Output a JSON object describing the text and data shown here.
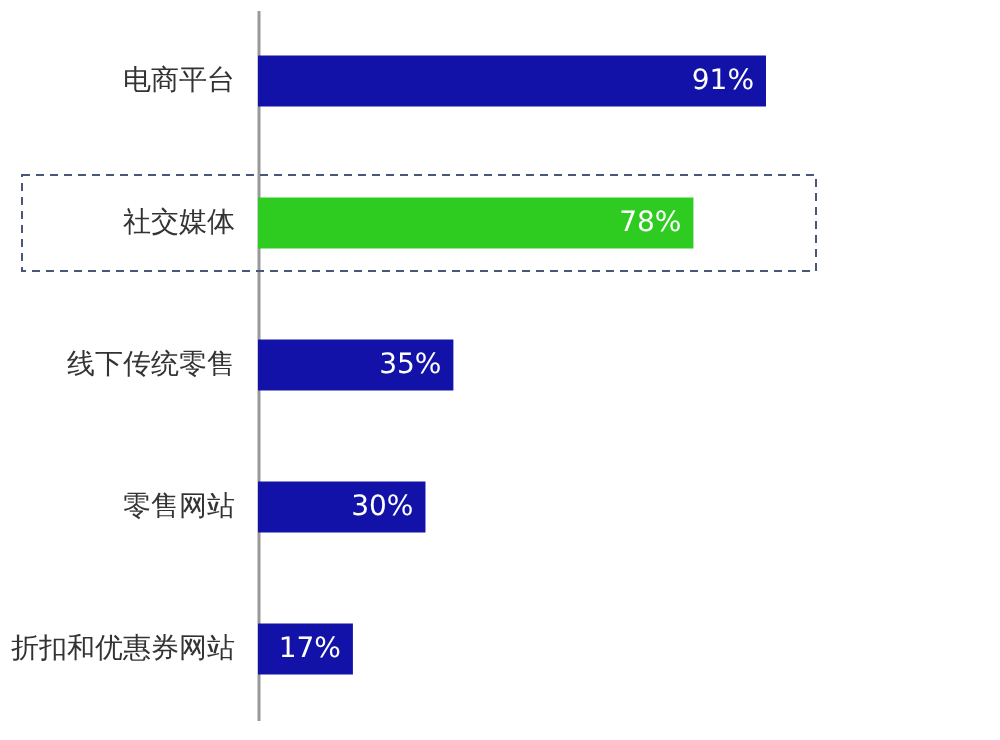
{
  "chart_data": {
    "type": "bar",
    "orientation": "horizontal",
    "categories": [
      "电商平台",
      "社交媒体",
      "线下传统零售",
      "零售网站",
      "折扣和优惠券网站"
    ],
    "values": [
      91,
      78,
      35,
      30,
      17
    ],
    "colors": [
      "#1212a8",
      "#2ecc20",
      "#1212a8",
      "#1212a8",
      "#1212a8"
    ],
    "value_labels": [
      "91%",
      "78%",
      "35%",
      "30%",
      "17%"
    ],
    "tick_labels": "y"
  }
}
